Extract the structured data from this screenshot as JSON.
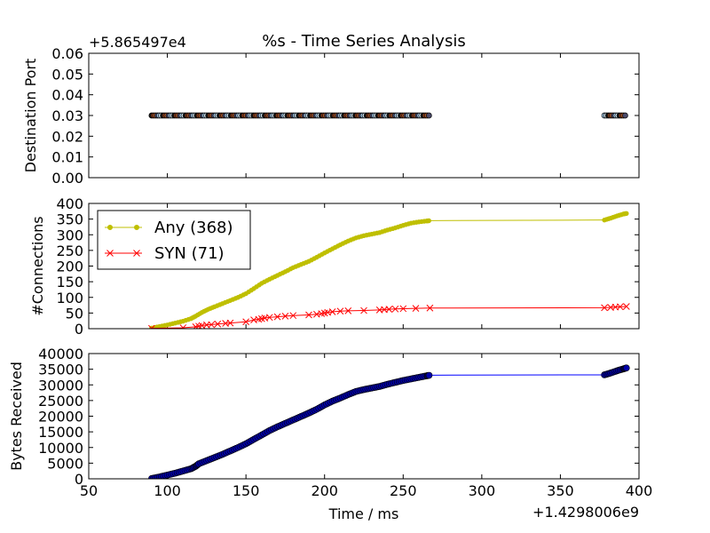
{
  "chart_data": {
    "title": "%s - Time Series Analysis",
    "type": "multi-panel time series",
    "shared_x": {
      "label": "Time / ms",
      "range": [
        50,
        400
      ],
      "ticks": [
        50,
        100,
        150,
        200,
        250,
        300,
        350,
        400
      ],
      "offset_label": "+1.4298006e9"
    },
    "panels": [
      {
        "id": "destination-port",
        "type": "scatter",
        "ylabel": "Destination Port",
        "ylim": [
          0,
          0.06
        ],
        "yticks": [
          "0.00",
          "0.01",
          "0.02",
          "0.03",
          "0.04",
          "0.05",
          "0.06"
        ],
        "offset_label": "+5.865497e4",
        "marker_colors": [
          "#1a1a1a",
          "#8c3c1a",
          "#b05a2a",
          "#4a4a6a",
          "#9ec6e6",
          "#d0e6f4"
        ],
        "segments": [
          {
            "x_start": 90,
            "x_end": 267,
            "y": 0.03
          },
          {
            "x_start": 378,
            "x_end": 392,
            "y": 0.03
          }
        ]
      },
      {
        "id": "connections",
        "type": "line",
        "ylabel": "#Connections",
        "ylim": [
          0,
          400
        ],
        "yticks": [
          0,
          50,
          100,
          150,
          200,
          250,
          300,
          350,
          400
        ],
        "legend_position": "upper-left",
        "series": [
          {
            "name": "Any (368)",
            "color": "#bfbf00",
            "marker": "dot",
            "points": [
              [
                90,
                2
              ],
              [
                95,
                7
              ],
              [
                100,
                12
              ],
              [
                105,
                18
              ],
              [
                110,
                24
              ],
              [
                115,
                32
              ],
              [
                118,
                40
              ],
              [
                122,
                52
              ],
              [
                126,
                62
              ],
              [
                130,
                70
              ],
              [
                135,
                80
              ],
              [
                140,
                90
              ],
              [
                145,
                100
              ],
              [
                150,
                112
              ],
              [
                155,
                128
              ],
              [
                160,
                145
              ],
              [
                165,
                158
              ],
              [
                170,
                170
              ],
              [
                175,
                182
              ],
              [
                180,
                195
              ],
              [
                185,
                205
              ],
              [
                190,
                215
              ],
              [
                195,
                228
              ],
              [
                200,
                242
              ],
              [
                205,
                255
              ],
              [
                210,
                268
              ],
              [
                215,
                280
              ],
              [
                220,
                290
              ],
              [
                225,
                297
              ],
              [
                230,
                302
              ],
              [
                235,
                307
              ],
              [
                240,
                315
              ],
              [
                245,
                322
              ],
              [
                250,
                330
              ],
              [
                255,
                337
              ],
              [
                260,
                341
              ],
              [
                265,
                344
              ],
              [
                267,
                345
              ],
              [
                378,
                347
              ],
              [
                382,
                353
              ],
              [
                386,
                360
              ],
              [
                390,
                366
              ],
              [
                392,
                368
              ]
            ]
          },
          {
            "name": "SYN (71)",
            "color": "#ff0000",
            "marker": "x",
            "points": [
              [
                90,
                1
              ],
              [
                110,
                3
              ],
              [
                118,
                6
              ],
              [
                120,
                8
              ],
              [
                122,
                10
              ],
              [
                125,
                12
              ],
              [
                128,
                13
              ],
              [
                132,
                15
              ],
              [
                137,
                17
              ],
              [
                140,
                18
              ],
              [
                150,
                22
              ],
              [
                155,
                28
              ],
              [
                158,
                30
              ],
              [
                160,
                32
              ],
              [
                162,
                34
              ],
              [
                165,
                36
              ],
              [
                170,
                38
              ],
              [
                175,
                40
              ],
              [
                180,
                42
              ],
              [
                190,
                44
              ],
              [
                195,
                46
              ],
              [
                198,
                48
              ],
              [
                200,
                50
              ],
              [
                202,
                52
              ],
              [
                205,
                54
              ],
              [
                210,
                56
              ],
              [
                215,
                57
              ],
              [
                225,
                58
              ],
              [
                235,
                60
              ],
              [
                238,
                61
              ],
              [
                241,
                62
              ],
              [
                245,
                63
              ],
              [
                250,
                64
              ],
              [
                258,
                65
              ],
              [
                267,
                66
              ],
              [
                378,
                67
              ],
              [
                382,
                68
              ],
              [
                385,
                69
              ],
              [
                388,
                70
              ],
              [
                392,
                71
              ]
            ]
          }
        ]
      },
      {
        "id": "bytes-received",
        "type": "line",
        "ylabel": "Bytes Received",
        "ylim": [
          0,
          40000
        ],
        "yticks": [
          0,
          5000,
          10000,
          15000,
          20000,
          25000,
          30000,
          35000,
          40000
        ],
        "series": [
          {
            "name": "",
            "color": "#0000ff",
            "marker_face": "#0000aa",
            "points": [
              [
                90,
                100
              ],
              [
                95,
                600
              ],
              [
                100,
                1200
              ],
              [
                105,
                1800
              ],
              [
                110,
                2500
              ],
              [
                115,
                3200
              ],
              [
                118,
                4000
              ],
              [
                120,
                4800
              ],
              [
                125,
                5800
              ],
              [
                130,
                6800
              ],
              [
                135,
                7800
              ],
              [
                140,
                8900
              ],
              [
                145,
                10000
              ],
              [
                150,
                11200
              ],
              [
                155,
                12600
              ],
              [
                160,
                14000
              ],
              [
                165,
                15400
              ],
              [
                170,
                16600
              ],
              [
                175,
                17700
              ],
              [
                180,
                18800
              ],
              [
                185,
                19900
              ],
              [
                190,
                21000
              ],
              [
                195,
                22200
              ],
              [
                200,
                23600
              ],
              [
                205,
                24800
              ],
              [
                210,
                25800
              ],
              [
                215,
                26900
              ],
              [
                220,
                27900
              ],
              [
                225,
                28500
              ],
              [
                230,
                29000
              ],
              [
                235,
                29500
              ],
              [
                240,
                30200
              ],
              [
                245,
                30800
              ],
              [
                250,
                31400
              ],
              [
                255,
                31900
              ],
              [
                260,
                32400
              ],
              [
                265,
                32900
              ],
              [
                267,
                33100
              ],
              [
                378,
                33200
              ],
              [
                382,
                33800
              ],
              [
                386,
                34500
              ],
              [
                390,
                35100
              ],
              [
                392,
                35400
              ]
            ]
          }
        ]
      }
    ]
  }
}
